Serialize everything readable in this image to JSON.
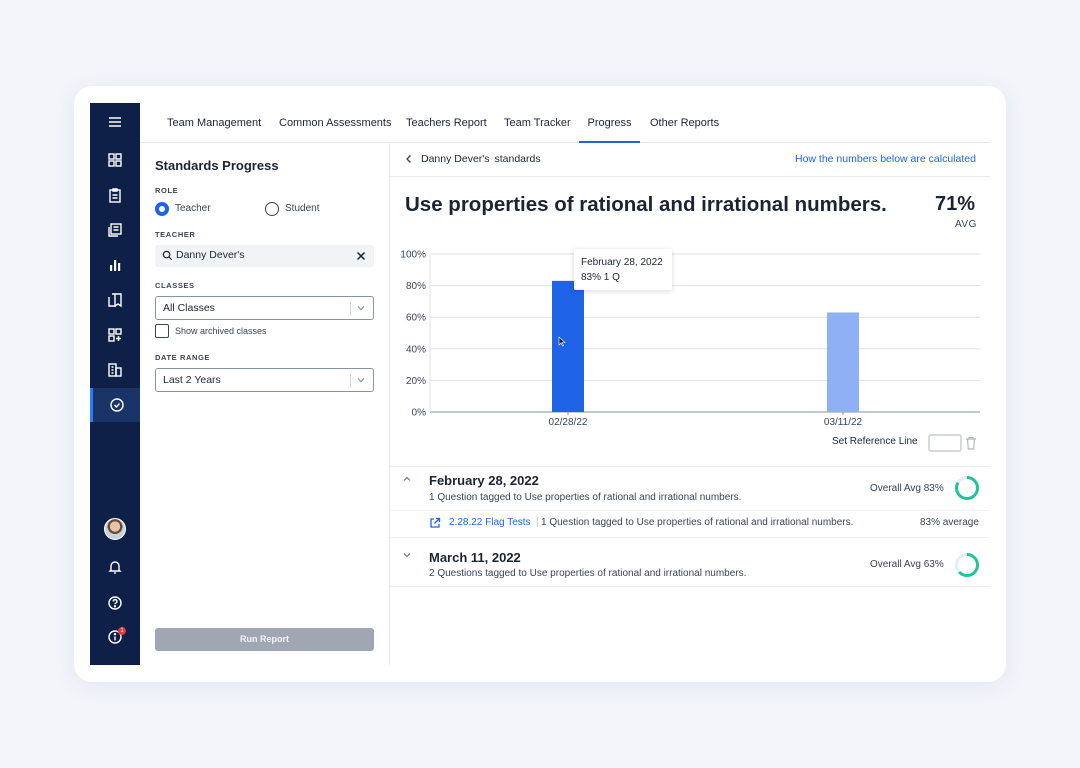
{
  "nav": {
    "tabs": [
      {
        "label": "Team Management"
      },
      {
        "label": "Common Assessments"
      },
      {
        "label": "Teachers Report"
      },
      {
        "label": "Team Tracker"
      },
      {
        "label": "Progress"
      },
      {
        "label": "Other Reports"
      }
    ],
    "active_tab": "Progress"
  },
  "rail": {
    "icons": [
      "menu-icon",
      "dashboard-icon",
      "clipboard-icon",
      "library-icon",
      "bar-chart-icon",
      "bookmark-icon",
      "add-grid-icon",
      "building-icon",
      "check-badge-icon",
      "avatar",
      "bell-icon",
      "help-icon",
      "info-icon"
    ],
    "notification_count": "1",
    "accent": "#0e2047"
  },
  "filters": {
    "title": "Standards Progress",
    "role_label": "ROLE",
    "role_options": [
      {
        "label": "Teacher"
      },
      {
        "label": "Student"
      }
    ],
    "role_selected": "Teacher",
    "teacher_label": "TEACHER",
    "teacher_value": "Danny Dever's",
    "classes_label": "CLASSES",
    "classes_value": "All Classes",
    "archived_label": "Show archived classes",
    "date_range_label": "DATE RANGE",
    "date_range_value": "Last 2 Years",
    "run_button": "Run Report"
  },
  "report": {
    "breadcrumb_name": "Danny Dever's",
    "breadcrumb_suffix": "standards",
    "help_link": "How the numbers below are calculated",
    "standard_title": "Use properties of rational and irrational numbers.",
    "avg_value": "71%",
    "avg_label": "AVG",
    "reference_label": "Set Reference Line"
  },
  "chart_data": {
    "type": "bar",
    "categories": [
      "02/28/22",
      "03/11/22"
    ],
    "values": [
      83,
      63
    ],
    "ylim": [
      0,
      100
    ],
    "yticks": [
      "0%",
      "20%",
      "40%",
      "60%",
      "80%",
      "100%"
    ],
    "colors": [
      "#1f63e6",
      "#8fb0f5"
    ],
    "grid": true,
    "tooltip": {
      "title": "February 28, 2022",
      "body": "83% 1 Q"
    }
  },
  "sections": [
    {
      "title": "February 28, 2022",
      "subtitle": "1 Question tagged to Use properties of rational and irrational numbers.",
      "avg_label": "Overall Avg 83%",
      "avg": 83,
      "expanded": true,
      "items": [
        {
          "link": "2.28.22 Flag Tests",
          "desc": "1 Question tagged to Use properties of rational and irrational numbers.",
          "avg": "83% average"
        }
      ]
    },
    {
      "title": "March 11, 2022",
      "subtitle": "2 Questions tagged to Use properties of rational and irrational numbers.",
      "avg_label": "Overall Avg 63%",
      "avg": 63,
      "expanded": false
    }
  ]
}
